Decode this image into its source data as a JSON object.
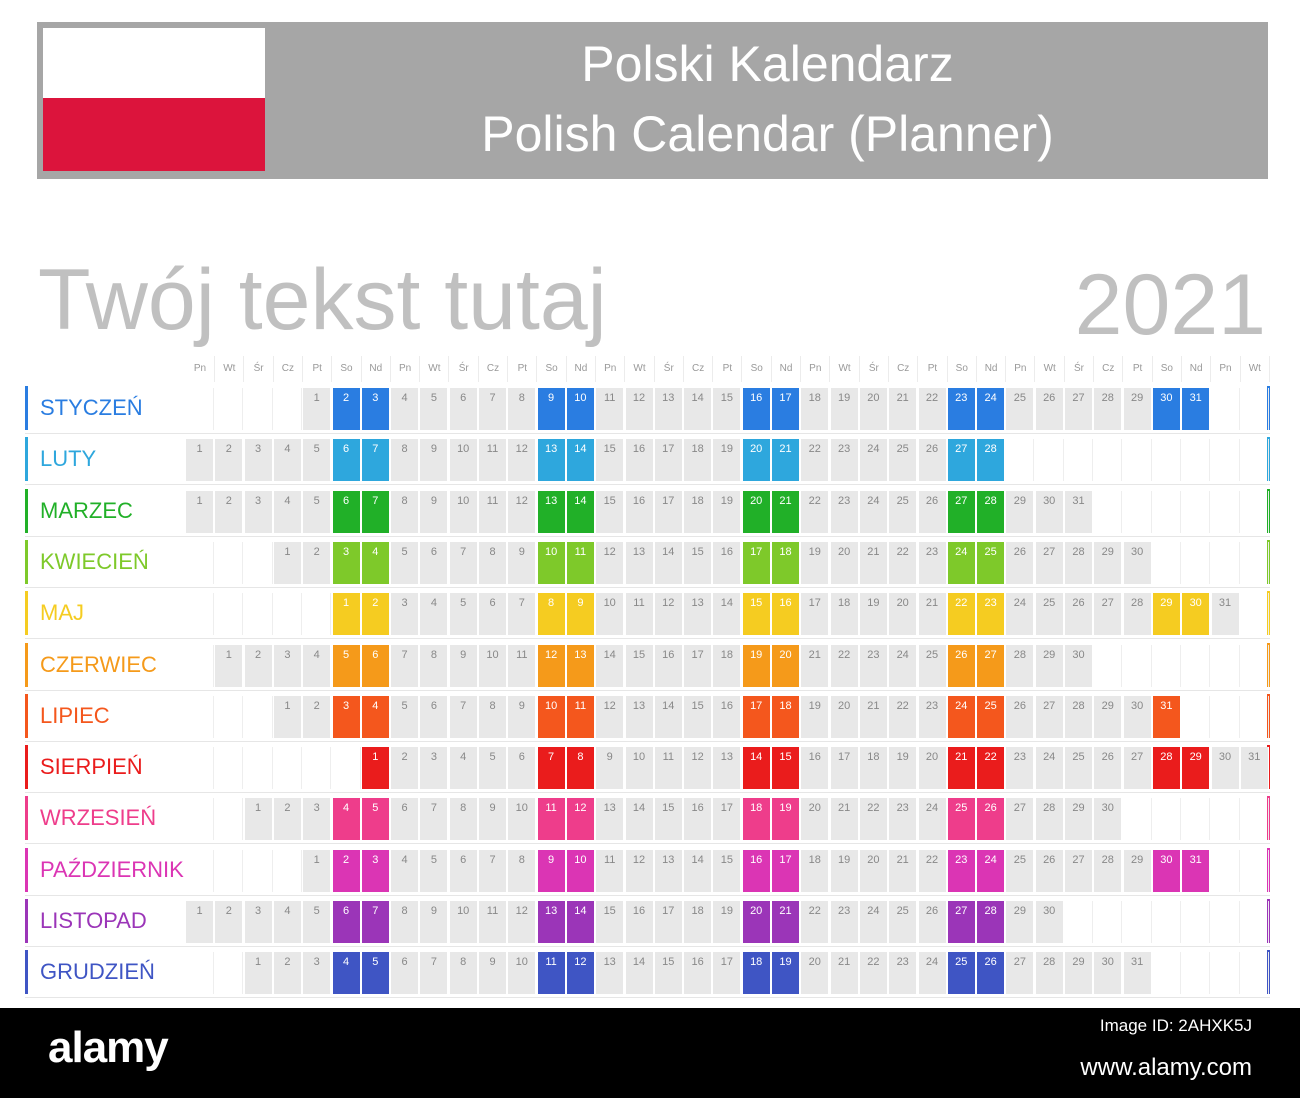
{
  "header": {
    "title_pl": "Polski Kalendarz",
    "title_en": "Polish Calendar (Planner)",
    "flag_colors": [
      "#ffffff",
      "#dc143c"
    ],
    "bar_color": "#a6a6a6"
  },
  "subtitle": "Twój tekst tutaj",
  "year": "2021",
  "weekday_headers": [
    "Pn",
    "Wt",
    "Śr",
    "Cz",
    "Pt",
    "So",
    "Nd",
    "Pn",
    "Wt",
    "Śr",
    "Cz",
    "Pt",
    "So",
    "Nd",
    "Pn",
    "Wt",
    "Śr",
    "Cz",
    "Pt",
    "So",
    "Nd",
    "Pn",
    "Wt",
    "Śr",
    "Cz",
    "Pt",
    "So",
    "Nd",
    "Pn",
    "Wt",
    "Śr",
    "Cz",
    "Pt",
    "So",
    "Nd",
    "Pn",
    "Wt"
  ],
  "months": [
    {
      "name": "STYCZEŃ",
      "color": "#2a7de1",
      "offset": 4,
      "days": 31
    },
    {
      "name": "LUTY",
      "color": "#2ea7dd",
      "offset": 0,
      "days": 28
    },
    {
      "name": "MARZEC",
      "color": "#21b028",
      "offset": 0,
      "days": 31
    },
    {
      "name": "KWIECIEŃ",
      "color": "#7ec92a",
      "offset": 3,
      "days": 30
    },
    {
      "name": "MAJ",
      "color": "#f5cc21",
      "offset": 5,
      "days": 31
    },
    {
      "name": "CZERWIEC",
      "color": "#f59a1a",
      "offset": 1,
      "days": 30
    },
    {
      "name": "LIPIEC",
      "color": "#f4571d",
      "offset": 3,
      "days": 31
    },
    {
      "name": "SIERPIEŃ",
      "color": "#ea1c1c",
      "offset": 6,
      "days": 31
    },
    {
      "name": "WRZESIEŃ",
      "color": "#ee3d8b",
      "offset": 2,
      "days": 30
    },
    {
      "name": "PAŹDZIERNIK",
      "color": "#db35b4",
      "offset": 4,
      "days": 31
    },
    {
      "name": "LISTOPAD",
      "color": "#9b35b8",
      "offset": 0,
      "days": 30
    },
    {
      "name": "GRUDZIEŃ",
      "color": "#3f55c4",
      "offset": 2,
      "days": 31
    }
  ],
  "watermark": {
    "logo": "alamy",
    "image_id": "Image ID: 2AHXK5J",
    "url": "www.alamy.com"
  }
}
